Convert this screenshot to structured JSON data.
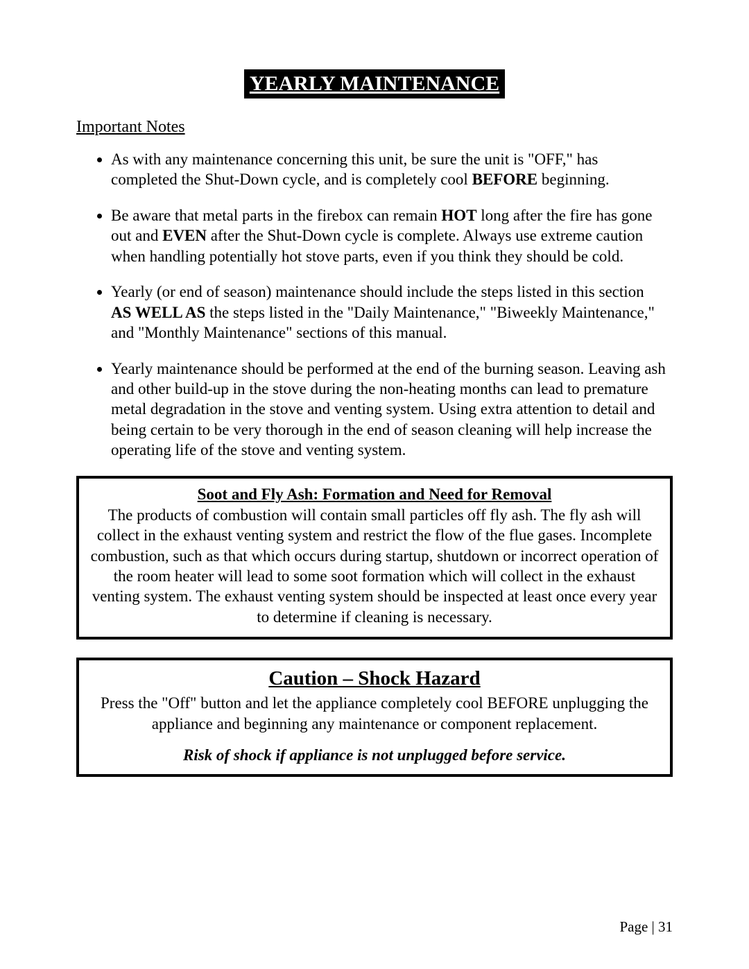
{
  "colors": {
    "page_bg": "#ffffff",
    "text": "#000000",
    "title_bg": "#000000",
    "title_fg": "#ffffff",
    "box_border": "#000000"
  },
  "typography": {
    "font_family": "Times New Roman",
    "body_fontsize_pt": 17,
    "title_fontsize_pt": 23,
    "caution_title_fontsize_pt": 22
  },
  "title": "YEARLY MAINTENANCE",
  "section_label": "Important Notes",
  "bullets": {
    "b1_pre": "As with any maintenance concerning this unit, be sure the unit is \"OFF,\" has completed the Shut-Down cycle, and is completely cool ",
    "b1_bold": "BEFORE",
    "b1_post": " beginning.",
    "b2_pre": "Be aware that metal parts in the firebox can remain ",
    "b2_bold1": "HOT",
    "b2_mid": " long after the fire has gone out and ",
    "b2_bold2": "EVEN",
    "b2_post": " after the Shut-Down cycle is complete.  Always use extreme caution when handling potentially hot stove parts, even if you think they should be cold.",
    "b3_pre": "Yearly (or end of season) maintenance should include the steps listed in this section ",
    "b3_bold": "AS WELL AS",
    "b3_post": " the steps listed in the \"Daily Maintenance,\" \"Biweekly Maintenance,\" and \"Monthly Maintenance\" sections of this manual.",
    "b4": "Yearly maintenance should be performed at the end of the burning season. Leaving ash and other build-up in the stove during the non-heating months can lead to premature metal degradation in the stove and venting system. Using extra attention to detail and being certain to be very thorough in the end of season cleaning will help increase the operating life of the stove and venting system."
  },
  "soot_box": {
    "title": "Soot and Fly Ash: Formation and Need for Removal",
    "text": "The products of combustion will contain small particles off fly ash.  The fly ash will collect in the exhaust venting system and restrict the flow of the flue gases. Incomplete combustion, such as that which occurs during startup, shutdown or incorrect operation of the room heater will lead to some soot formation which will collect in the exhaust venting system.  The exhaust venting system should be inspected at least once every year to determine if cleaning is necessary."
  },
  "caution_box": {
    "title": "Caution – Shock Hazard",
    "text": "Press the \"Off\" button and let the appliance completely cool BEFORE unplugging the appliance and beginning any maintenance or component replacement.",
    "risk": "Risk of shock if appliance is not unplugged before service."
  },
  "page_number": "Page | 31"
}
